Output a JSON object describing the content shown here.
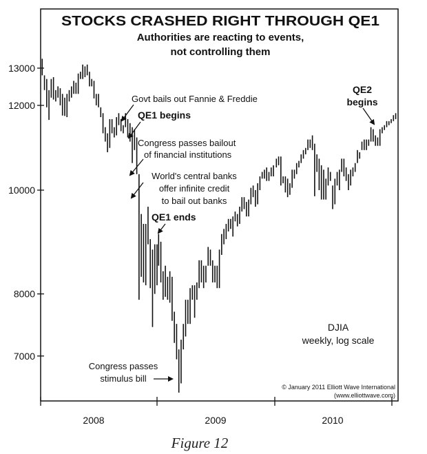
{
  "chart_data": {
    "type": "bar",
    "subtype": "high-low weekly bars",
    "title": "STOCKS CRASHED RIGHT THROUGH QE1",
    "subtitle": [
      "Authorities are reacting to events,",
      "not controlling them"
    ],
    "series_label": "DJIA",
    "scale_note": "weekly, log scale",
    "y_scale": "log",
    "ylim": [
      6300,
      14500
    ],
    "y_ticks": [
      13000,
      12000,
      10000,
      8000,
      7000
    ],
    "y_tick_labels": [
      "13000",
      "12000",
      "10000",
      "8000",
      "7000"
    ],
    "x_tick_labels": [
      "2008",
      "2009",
      "2010"
    ],
    "grid": false,
    "weekly_high_low": {
      "2008": [
        [
          13265,
          12800
        ],
        [
          12800,
          12400
        ],
        [
          12700,
          11950
        ],
        [
          12400,
          11630
        ],
        [
          12700,
          12200
        ],
        [
          12750,
          12150
        ],
        [
          12400,
          12100
        ],
        [
          12500,
          12200
        ],
        [
          12450,
          12000
        ],
        [
          12300,
          11740
        ],
        [
          12200,
          11730
        ],
        [
          12300,
          11700
        ],
        [
          12400,
          12100
        ],
        [
          12500,
          12200
        ],
        [
          12650,
          12300
        ],
        [
          12600,
          12300
        ],
        [
          12850,
          12300
        ],
        [
          12900,
          12700
        ],
        [
          13100,
          12700
        ],
        [
          13050,
          12750
        ],
        [
          13100,
          12800
        ],
        [
          12900,
          12500
        ],
        [
          12700,
          12500
        ],
        [
          12650,
          12180
        ],
        [
          12300,
          12000
        ],
        [
          12300,
          11950
        ],
        [
          11950,
          11700
        ],
        [
          11800,
          11300
        ],
        [
          11450,
          11100
        ],
        [
          11300,
          10850
        ],
        [
          11650,
          10950
        ],
        [
          11650,
          11300
        ],
        [
          11450,
          11200
        ],
        [
          11700,
          11250
        ],
        [
          11800,
          11500
        ],
        [
          11650,
          11350
        ],
        [
          11500,
          11300
        ],
        [
          11800,
          11450
        ],
        [
          11650,
          11200
        ],
        [
          11550,
          11100
        ],
        [
          11450,
          10600
        ],
        [
          11400,
          10900
        ],
        [
          11200,
          10350
        ],
        [
          10350,
          7900
        ],
        [
          9500,
          8300
        ],
        [
          9300,
          8200
        ],
        [
          9300,
          8150
        ],
        [
          9650,
          8900
        ],
        [
          9000,
          8100
        ],
        [
          8800,
          7450
        ],
        [
          8900,
          8000
        ],
        [
          8900,
          8150
        ]
      ],
      "2009": [
        [
          9100,
          8500
        ],
        [
          8950,
          8200
        ],
        [
          8400,
          7900
        ],
        [
          8500,
          7950
        ],
        [
          8300,
          7900
        ],
        [
          8400,
          7850
        ],
        [
          8300,
          7550
        ],
        [
          7700,
          7200
        ],
        [
          7500,
          6950
        ],
        [
          7100,
          6470
        ],
        [
          7250,
          6600
        ],
        [
          7500,
          7100
        ],
        [
          7900,
          7300
        ],
        [
          7900,
          7500
        ],
        [
          8100,
          7500
        ],
        [
          8150,
          7900
        ],
        [
          8150,
          7600
        ],
        [
          8200,
          7900
        ],
        [
          8600,
          8100
        ],
        [
          8600,
          8200
        ],
        [
          8500,
          8100
        ],
        [
          8500,
          8200
        ],
        [
          8850,
          8500
        ],
        [
          8800,
          8500
        ],
        [
          8600,
          8200
        ],
        [
          8500,
          8200
        ],
        [
          8500,
          8100
        ],
        [
          8800,
          8100
        ],
        [
          9100,
          8700
        ],
        [
          9200,
          8900
        ],
        [
          9300,
          9000
        ],
        [
          9400,
          9150
        ],
        [
          9400,
          9200
        ],
        [
          9450,
          9050
        ],
        [
          9550,
          9350
        ],
        [
          9500,
          9250
        ],
        [
          9650,
          9300
        ],
        [
          9850,
          9550
        ],
        [
          9850,
          9600
        ],
        [
          9750,
          9450
        ],
        [
          9800,
          9450
        ],
        [
          10050,
          9700
        ],
        [
          10100,
          9850
        ],
        [
          10000,
          9650
        ],
        [
          10150,
          9700
        ],
        [
          10300,
          10000
        ],
        [
          10400,
          10250
        ],
        [
          10450,
          10250
        ],
        [
          10500,
          10200
        ],
        [
          10400,
          10200
        ],
        [
          10500,
          10300
        ],
        [
          10550,
          10300
        ]
      ],
      "2010": [
        [
          10700,
          10500
        ],
        [
          10750,
          10550
        ],
        [
          10750,
          10100
        ],
        [
          10300,
          10150
        ],
        [
          10300,
          9950
        ],
        [
          10250,
          9850
        ],
        [
          10150,
          9900
        ],
        [
          10450,
          10050
        ],
        [
          10450,
          10250
        ],
        [
          10600,
          10350
        ],
        [
          10650,
          10500
        ],
        [
          10800,
          10600
        ],
        [
          10900,
          10700
        ],
        [
          10950,
          10800
        ],
        [
          11150,
          10900
        ],
        [
          11150,
          10950
        ],
        [
          11250,
          10900
        ],
        [
          11050,
          9870
        ],
        [
          10800,
          10400
        ],
        [
          10700,
          10000
        ],
        [
          10550,
          9800
        ],
        [
          10450,
          9800
        ],
        [
          10250,
          9800
        ],
        [
          10500,
          10100
        ],
        [
          10400,
          10200
        ],
        [
          10100,
          9600
        ],
        [
          10250,
          9700
        ],
        [
          10400,
          10100
        ],
        [
          10450,
          10000
        ],
        [
          10700,
          10400
        ],
        [
          10700,
          10300
        ],
        [
          10500,
          10200
        ],
        [
          10350,
          10000
        ],
        [
          10450,
          10100
        ],
        [
          10500,
          10300
        ],
        [
          10600,
          10400
        ],
        [
          10900,
          10600
        ],
        [
          10850,
          10700
        ],
        [
          11100,
          10900
        ],
        [
          11150,
          10900
        ],
        [
          11150,
          10900
        ],
        [
          11150,
          11000
        ],
        [
          11450,
          11100
        ],
        [
          11400,
          11100
        ],
        [
          11250,
          11000
        ],
        [
          11200,
          11000
        ],
        [
          11400,
          11000
        ],
        [
          11450,
          11300
        ],
        [
          11500,
          11380
        ],
        [
          11600,
          11450
        ],
        [
          11600,
          11500
        ],
        [
          11650,
          11550
        ]
      ],
      "2011": [
        [
          11750,
          11600
        ],
        [
          11800,
          11650
        ]
      ]
    },
    "annotations": {
      "fannie": "Govt bails out Fannie & Freddie",
      "qe1_begins": "QE1 begins",
      "bailout": [
        "Congress passes bailout",
        "of financial institutions"
      ],
      "central_banks": [
        "World's central banks",
        "offer infinite credit",
        "to bail out banks"
      ],
      "qe1_ends": "QE1 ends",
      "stimulus": [
        "Congress passes",
        "stimulus bill"
      ],
      "qe2": [
        "QE2",
        "begins"
      ]
    },
    "copyright": [
      "© January 2011 Elliott Wave International",
      "(www.elliottwave.com)"
    ]
  },
  "caption": "Figure 12"
}
